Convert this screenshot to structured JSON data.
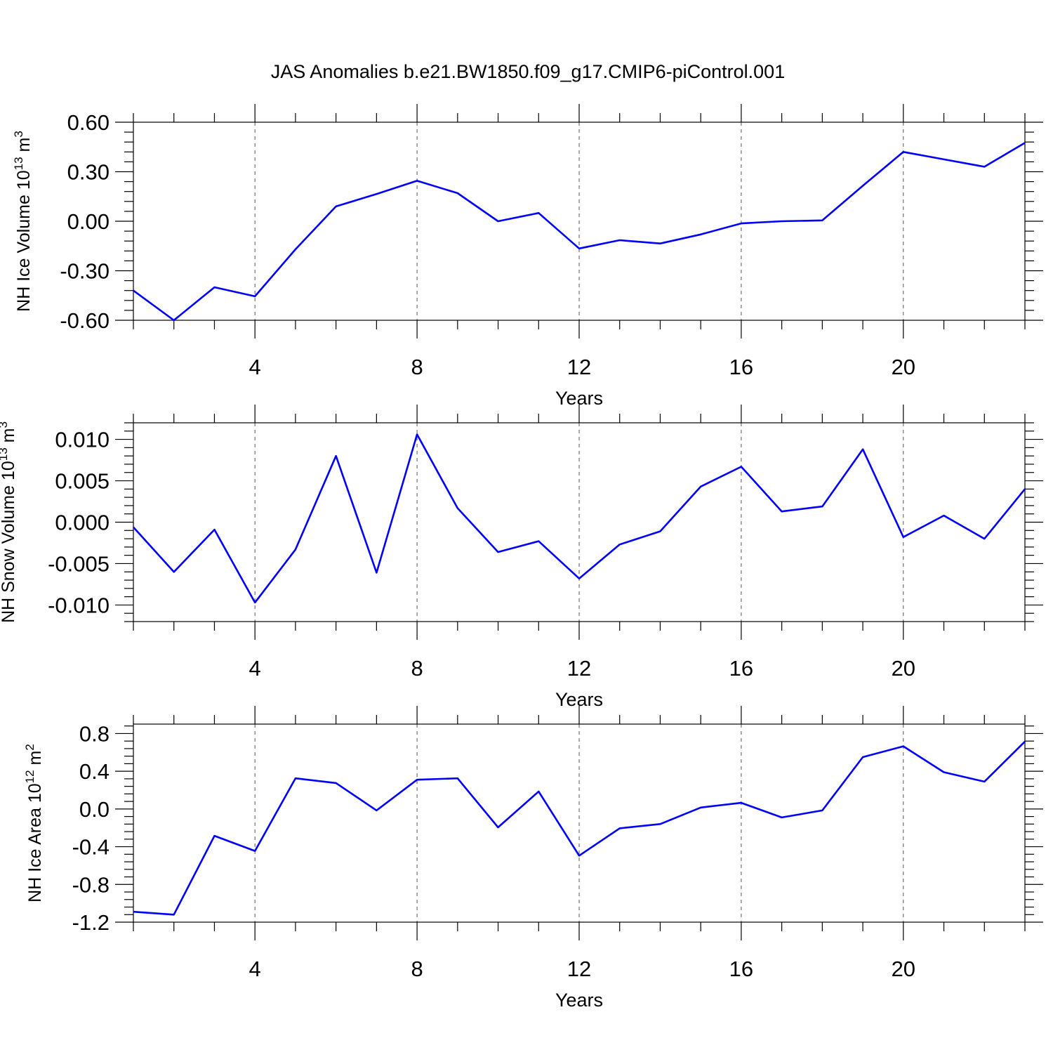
{
  "figure": {
    "title": "JAS Anomalies b.e21.BW1850.f09_g17.CMIP6-piControl.001"
  },
  "chart_data": [
    {
      "type": "line",
      "ylabel": "NH Ice Volume 10",
      "ylabel_sup": "13",
      "ylabel_unit": " m",
      "ylabel_unit_sup": "3",
      "xlabel": "Years",
      "xlim": [
        1,
        23
      ],
      "ylim": [
        -0.6,
        0.6
      ],
      "yticks": [
        -0.6,
        -0.3,
        0.0,
        0.3,
        0.6
      ],
      "ytick_labels": [
        "-0.60",
        "-0.30",
        "0.00",
        "0.30",
        "0.60"
      ],
      "xticks": [
        4,
        8,
        12,
        16,
        20
      ],
      "xtick_labels": [
        "4",
        "8",
        "12",
        "16",
        "20"
      ],
      "grid": "vertical dashed",
      "line_color": "#0000ff",
      "x": [
        1,
        2,
        3,
        4,
        5,
        6,
        7,
        8,
        9,
        10,
        11,
        12,
        13,
        14,
        15,
        16,
        17,
        18,
        19,
        20,
        21,
        22,
        23
      ],
      "values": [
        -0.42,
        -0.6,
        -0.4,
        -0.455,
        -0.17,
        0.09,
        0.165,
        0.245,
        0.17,
        0.0,
        0.05,
        -0.165,
        -0.115,
        -0.135,
        -0.08,
        -0.013,
        0.0,
        0.005,
        0.215,
        0.42,
        0.375,
        0.33,
        0.475
      ]
    },
    {
      "type": "line",
      "ylabel": "NH Snow Volume 10",
      "ylabel_sup": "13",
      "ylabel_unit": " m",
      "ylabel_unit_sup": "3",
      "xlabel": "Years",
      "xlim": [
        1,
        23
      ],
      "ylim": [
        -0.012,
        0.012
      ],
      "yticks": [
        -0.01,
        -0.005,
        0.0,
        0.005,
        0.01
      ],
      "ytick_labels": [
        "-0.010",
        "-0.005",
        "0.000",
        "0.005",
        "0.010"
      ],
      "xticks": [
        4,
        8,
        12,
        16,
        20
      ],
      "xtick_labels": [
        "4",
        "8",
        "12",
        "16",
        "20"
      ],
      "grid": "vertical dashed",
      "line_color": "#0000ff",
      "x": [
        1,
        2,
        3,
        4,
        5,
        6,
        7,
        8,
        9,
        10,
        11,
        12,
        13,
        14,
        15,
        16,
        17,
        18,
        19,
        20,
        21,
        22,
        23
      ],
      "values": [
        -0.0006,
        -0.006,
        -0.0009,
        -0.0097,
        -0.0033,
        0.008,
        -0.0061,
        0.0106,
        0.0017,
        -0.0036,
        -0.0023,
        -0.0068,
        -0.0027,
        -0.0011,
        0.0043,
        0.0067,
        0.0013,
        0.0019,
        0.0088,
        -0.0018,
        0.0008,
        -0.002,
        0.004
      ]
    },
    {
      "type": "line",
      "ylabel": "NH Ice Area 10",
      "ylabel_sup": "12",
      "ylabel_unit": " m",
      "ylabel_unit_sup": "2",
      "xlabel": "Years",
      "xlim": [
        1,
        23
      ],
      "ylim": [
        -1.2,
        0.9
      ],
      "yticks": [
        -1.2,
        -0.8,
        -0.4,
        0.0,
        0.4,
        0.8
      ],
      "ytick_labels": [
        "-1.2",
        "-0.8",
        "-0.4",
        "0.0",
        "0.4",
        "0.8"
      ],
      "xticks": [
        4,
        8,
        12,
        16,
        20
      ],
      "xtick_labels": [
        "4",
        "8",
        "12",
        "16",
        "20"
      ],
      "grid": "vertical dashed",
      "line_color": "#0000ff",
      "x": [
        1,
        2,
        3,
        4,
        5,
        6,
        7,
        8,
        9,
        10,
        11,
        12,
        13,
        14,
        15,
        16,
        17,
        18,
        19,
        20,
        21,
        22,
        23
      ],
      "values": [
        -1.09,
        -1.12,
        -0.285,
        -0.445,
        0.325,
        0.275,
        -0.015,
        0.31,
        0.325,
        -0.195,
        0.185,
        -0.495,
        -0.205,
        -0.16,
        0.015,
        0.065,
        -0.09,
        -0.015,
        0.55,
        0.665,
        0.39,
        0.29,
        0.715
      ]
    }
  ]
}
